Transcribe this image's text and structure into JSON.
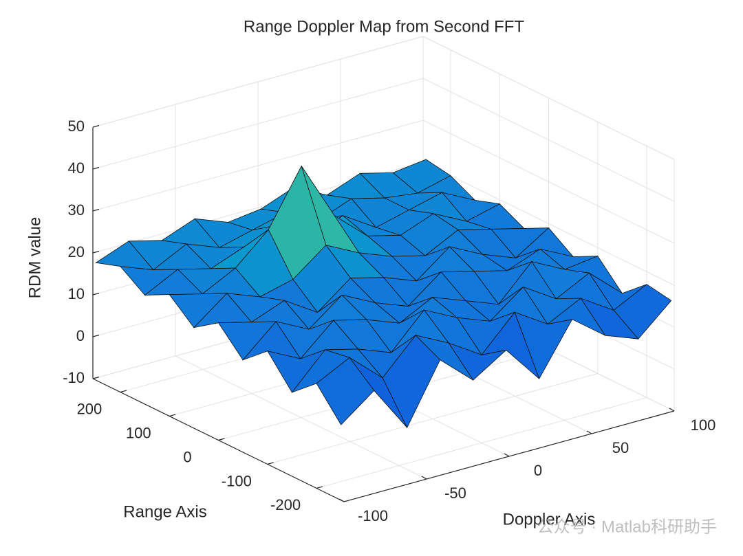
{
  "chart_data": {
    "type": "surface",
    "title": "Range Doppler Map from Second FFT",
    "xlabel": "Doppler Axis",
    "ylabel": "Range Axis",
    "zlabel": "RDM value",
    "xlim": [
      -100,
      100
    ],
    "xticks": [
      -100,
      -50,
      0,
      50,
      100
    ],
    "ylim": [
      -256,
      256
    ],
    "yticks": [
      -200,
      -100,
      0,
      100,
      200
    ],
    "zlim": [
      -10,
      50
    ],
    "zticks": [
      -10,
      0,
      10,
      20,
      30,
      40,
      50
    ],
    "grid": true,
    "colormap": "parula",
    "x": [
      -100,
      -80,
      -60,
      -40,
      -20,
      0,
      20,
      40,
      60,
      80,
      100
    ],
    "y": [
      -250,
      -200,
      -150,
      -100,
      -50,
      0,
      50,
      100,
      150,
      200,
      250
    ],
    "z": [
      [
        8,
        14,
        3,
        17,
        10,
        15,
        6,
        18,
        12,
        9,
        16
      ],
      [
        15,
        19,
        12,
        20,
        16,
        11,
        19,
        14,
        18,
        13,
        17
      ],
      [
        10,
        18,
        16,
        13,
        21,
        17,
        14,
        20,
        15,
        19,
        12
      ],
      [
        17,
        13,
        20,
        18,
        15,
        19,
        16,
        13,
        21,
        17,
        18
      ],
      [
        12,
        19,
        15,
        21,
        17,
        14,
        20,
        18,
        16,
        19,
        15
      ],
      [
        18,
        16,
        19,
        14,
        20,
        18,
        15,
        21,
        17,
        14,
        19
      ],
      [
        14,
        20,
        17,
        19,
        25,
        21,
        18,
        16,
        20,
        18,
        16
      ],
      [
        19,
        17,
        21,
        28,
        41,
        27,
        20,
        18,
        21,
        17,
        19
      ],
      [
        16,
        20,
        18,
        21,
        24,
        19,
        22,
        17,
        19,
        21,
        17
      ],
      [
        20,
        17,
        21,
        18,
        20,
        22,
        18,
        21,
        19,
        18,
        20
      ],
      [
        18,
        21,
        19,
        22,
        19,
        20,
        23,
        19,
        22,
        20,
        21
      ]
    ]
  },
  "watermark": "公众号 · Matlab科研助手"
}
